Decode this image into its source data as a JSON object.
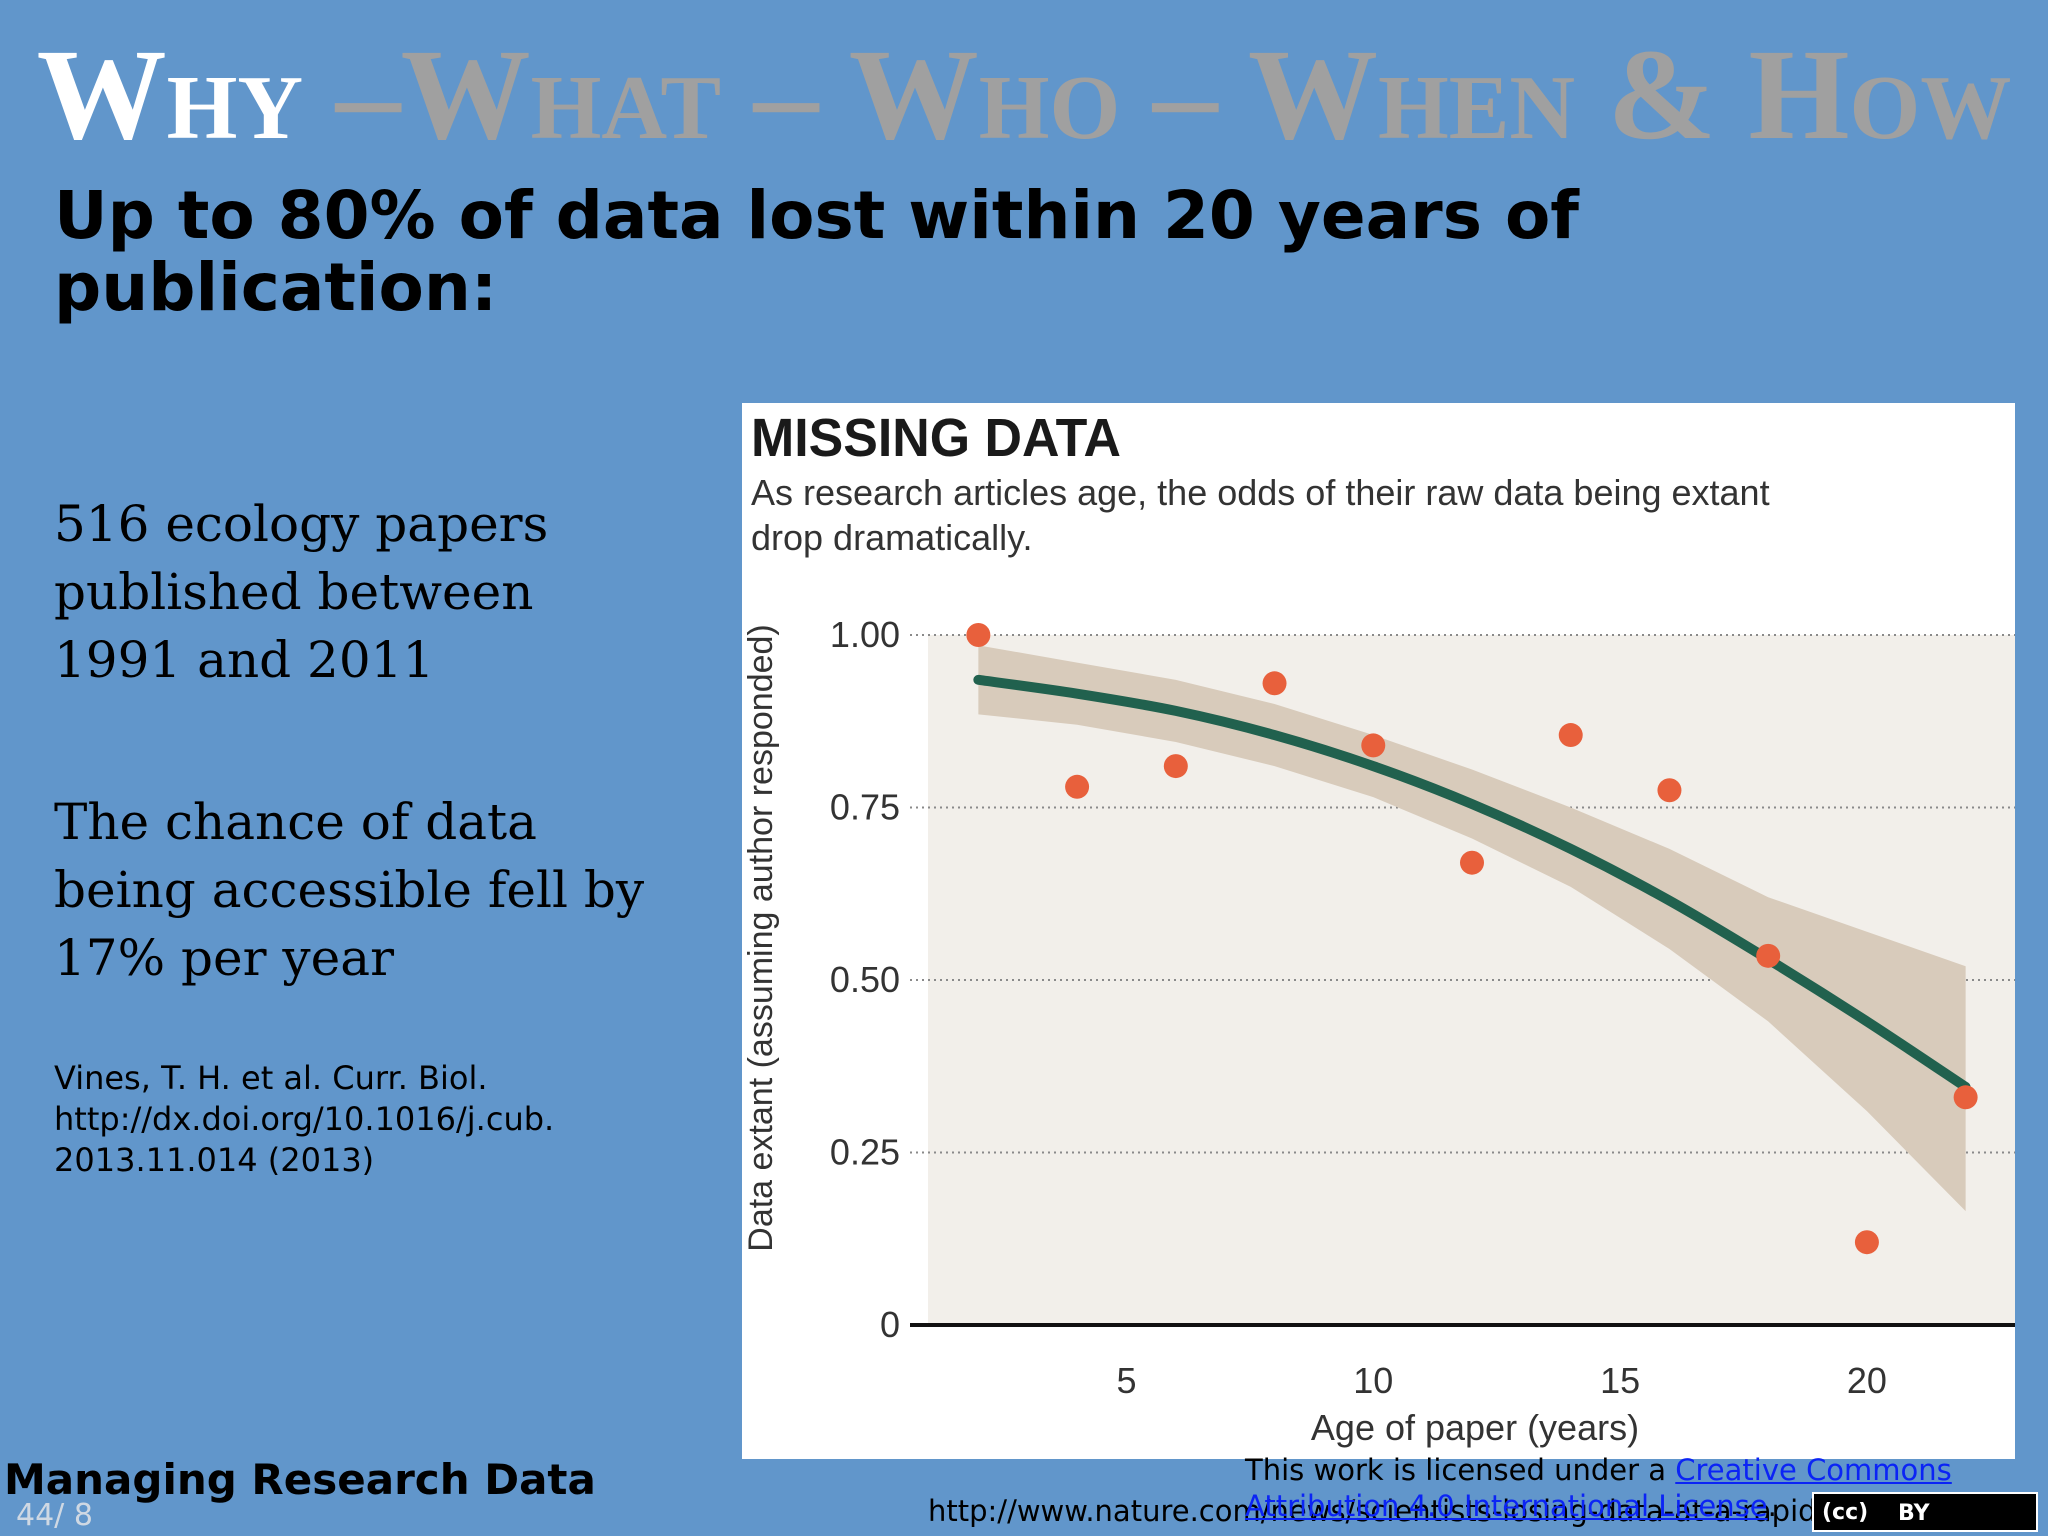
{
  "slide": {
    "title_active": "Why",
    "title_rest": "–What  – Who – When & How",
    "headline": "Up to 80% of data lost within 20 years of publication:",
    "bullet1": "516 ecology papers published between 1991 and 2011",
    "bullet2": "The chance of data being accessible fell by 17% per year",
    "citation_line1": "Vines, T. H. et al. Curr. Biol.",
    "citation_line2": "http://dx.doi.org/10.1016/j.cub.",
    "citation_line3": "2013.11.014 (2013)",
    "footer_title": "Managing Research Data",
    "page_number": "44/ 8",
    "source_url": "http://www.nature.com/news/scientists-losing-data-at-a-rapid-rate",
    "license_prefix": "This work is licensed under a ",
    "license_link": "Creative Commons Attribution 4.0 International License",
    "license_suffix": ".",
    "badge_cc": "(cc)",
    "badge_by": "BY"
  },
  "colors": {
    "background": "#6196cb",
    "point": "#e8603c",
    "fit_line": "#21614e",
    "band": "#d8cbbb",
    "plot_bg": "#f2efea"
  },
  "chart_data": {
    "type": "scatter",
    "title": "MISSING DATA",
    "subtitle": "As research articles age, the odds of their raw data being extant drop dramatically.",
    "xlabel": "Age of paper (years)",
    "ylabel": "Data extant (assuming author responded)",
    "xlim": [
      1,
      23
    ],
    "ylim": [
      0,
      1.0
    ],
    "xticks": [
      5,
      10,
      15,
      20
    ],
    "yticks": [
      0,
      0.25,
      0.5,
      0.75,
      1.0
    ],
    "yticklabels": [
      "0",
      "0.25",
      "0.50",
      "0.75",
      "1.00"
    ],
    "grid": "horizontal dotted",
    "points": {
      "x": [
        2,
        4,
        6,
        8,
        10,
        12,
        14,
        16,
        18,
        20,
        22
      ],
      "y": [
        1.0,
        0.78,
        0.81,
        0.93,
        0.84,
        0.67,
        0.855,
        0.775,
        0.535,
        0.12,
        0.33
      ]
    },
    "fit": {
      "x": [
        2,
        4,
        6,
        8,
        10,
        12,
        14,
        16,
        18,
        20,
        22
      ],
      "y": [
        0.935,
        0.915,
        0.89,
        0.855,
        0.81,
        0.755,
        0.69,
        0.615,
        0.53,
        0.44,
        0.345
      ],
      "lower": [
        0.885,
        0.87,
        0.845,
        0.81,
        0.765,
        0.705,
        0.635,
        0.545,
        0.44,
        0.31,
        0.165
      ],
      "upper": [
        0.985,
        0.96,
        0.935,
        0.9,
        0.855,
        0.805,
        0.75,
        0.69,
        0.62,
        0.57,
        0.52
      ]
    }
  }
}
